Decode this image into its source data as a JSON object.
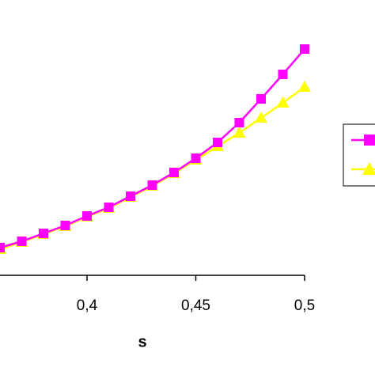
{
  "chart_data": {
    "type": "line",
    "x_label": "s",
    "x": [
      0.36,
      0.37,
      0.38,
      0.39,
      0.4,
      0.41,
      0.42,
      0.43,
      0.44,
      0.45,
      0.46,
      0.47,
      0.48,
      0.49,
      0.5
    ],
    "series": [
      {
        "color": "#ff00ff",
        "marker": "square",
        "values": [
          35,
          43,
          53,
          63,
          75,
          86,
          100,
          114,
          130,
          148,
          168,
          193,
          223,
          254,
          286
        ]
      },
      {
        "color": "#ffff00",
        "marker": "triangle",
        "values": [
          33,
          42,
          52,
          62,
          74,
          85,
          99,
          113,
          129,
          146,
          163,
          180,
          199,
          218,
          238
        ]
      }
    ],
    "xlim": [
      0.36,
      0.5
    ],
    "xticks": [
      {
        "value": 0.4,
        "label": "0,4"
      },
      {
        "value": 0.45,
        "label": "0,45"
      },
      {
        "value": 0.5,
        "label": "0,5"
      }
    ],
    "ylim": [
      0,
      348
    ],
    "legend": "right"
  }
}
